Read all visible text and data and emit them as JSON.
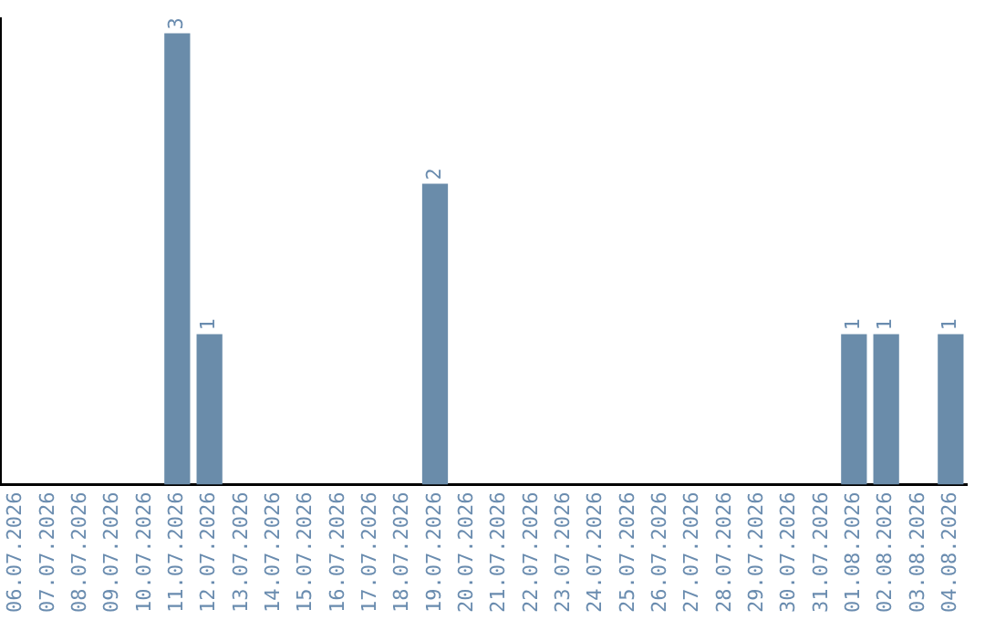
{
  "chart_data": {
    "type": "bar",
    "categories": [
      "06.07.2026",
      "07.07.2026",
      "08.07.2026",
      "09.07.2026",
      "10.07.2026",
      "11.07.2026",
      "12.07.2026",
      "13.07.2026",
      "14.07.2026",
      "15.07.2026",
      "16.07.2026",
      "17.07.2026",
      "18.07.2026",
      "19.07.2026",
      "20.07.2026",
      "21.07.2026",
      "22.07.2026",
      "23.07.2026",
      "24.07.2026",
      "25.07.2026",
      "26.07.2026",
      "27.07.2026",
      "28.07.2026",
      "29.07.2026",
      "30.07.2026",
      "31.07.2026",
      "01.08.2026",
      "02.08.2026",
      "03.08.2026",
      "04.08.2026"
    ],
    "values": [
      0,
      0,
      0,
      0,
      0,
      3,
      1,
      0,
      0,
      0,
      0,
      0,
      0,
      2,
      0,
      0,
      0,
      0,
      0,
      0,
      0,
      0,
      0,
      0,
      0,
      0,
      1,
      1,
      0,
      1
    ],
    "value_labels": [
      null,
      null,
      null,
      null,
      null,
      "3",
      "1",
      null,
      null,
      null,
      null,
      null,
      null,
      "2",
      null,
      null,
      null,
      null,
      null,
      null,
      null,
      null,
      null,
      null,
      null,
      null,
      "1",
      "1",
      null,
      "1"
    ],
    "color": "#6a8caa",
    "ylim": [
      0,
      3.1
    ],
    "tick_labels": "x",
    "grid": false,
    "legend": false
  }
}
